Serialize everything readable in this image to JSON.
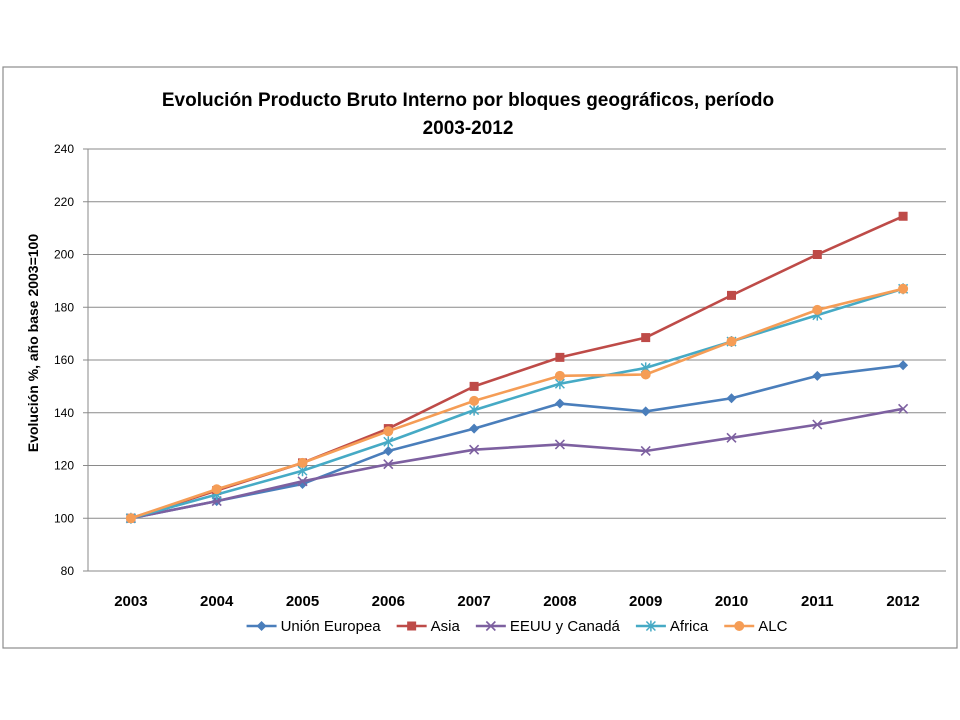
{
  "chart_data": {
    "type": "line",
    "title_lines": [
      "Evolución Producto Bruto Interno por bloques geográficos, período",
      "2003-2012"
    ],
    "xlabel": "",
    "ylabel": "Evolución %, año base 2003=100",
    "ylim": [
      80,
      240
    ],
    "yticks": [
      80,
      100,
      120,
      140,
      160,
      180,
      200,
      220,
      240
    ],
    "grid": true,
    "legend_position": "bottom",
    "categories": [
      "2003",
      "2004",
      "2005",
      "2006",
      "2007",
      "2008",
      "2009",
      "2010",
      "2011",
      "2012"
    ],
    "series": [
      {
        "name": "Unión Europea",
        "color": "#4a7ebb",
        "marker": "diamond",
        "values": [
          100,
          106.5,
          113,
          125.5,
          134,
          143.5,
          140.5,
          145.5,
          154,
          158
        ]
      },
      {
        "name": "Asia",
        "color": "#be4b48",
        "marker": "square",
        "values": [
          100,
          110.5,
          121,
          134,
          150,
          161,
          168.5,
          184.5,
          200,
          214.5
        ]
      },
      {
        "name": "EEUU y Canadá",
        "color": "#7d60a0",
        "marker": "x",
        "values": [
          100,
          106.5,
          114,
          120.5,
          126,
          128,
          125.5,
          130.5,
          135.5,
          141.5
        ]
      },
      {
        "name": "Africa",
        "color": "#46aac5",
        "marker": "star",
        "values": [
          100,
          109,
          118,
          129,
          141,
          151,
          157,
          167,
          177,
          187
        ]
      },
      {
        "name": "ALC",
        "color": "#f59d56",
        "marker": "circle",
        "values": [
          100,
          111,
          121,
          133,
          144.5,
          154,
          154.5,
          167,
          179,
          187
        ]
      }
    ]
  }
}
